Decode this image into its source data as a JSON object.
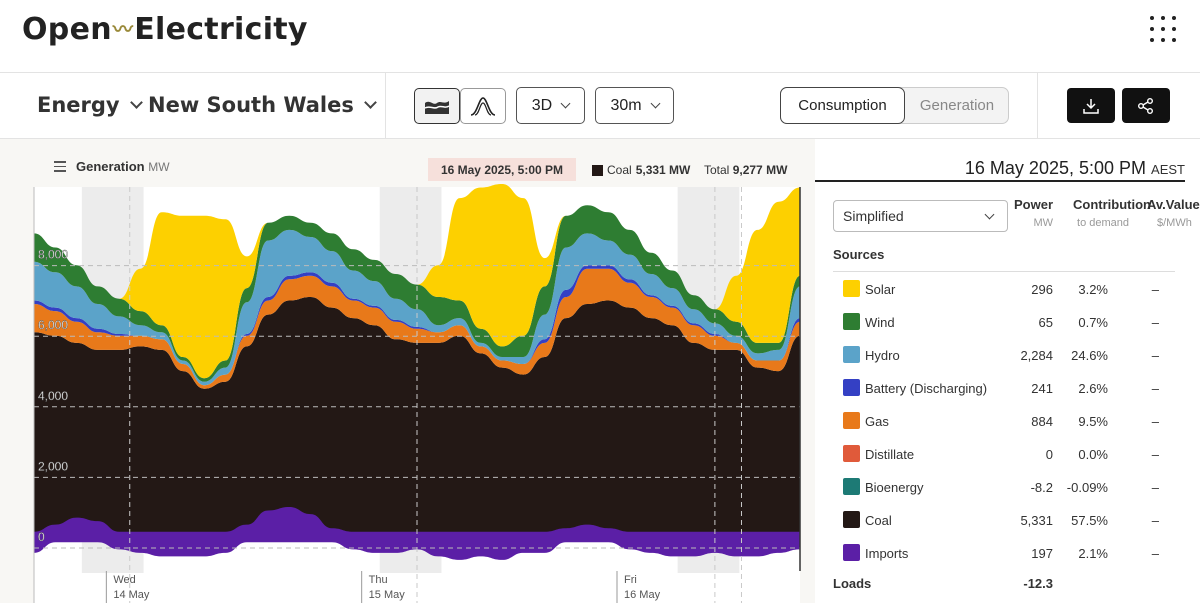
{
  "header": {
    "logo_left": "Open",
    "logo_right": "Electricity",
    "menu_icon": "grid-dots-icon"
  },
  "toolbar": {
    "metric": "Energy",
    "region": "New South Wales",
    "range": "3D",
    "interval": "30m",
    "mode_active": "Consumption",
    "mode_inactive": "Generation",
    "download_icon": "download-icon",
    "share_icon": "share-icon"
  },
  "chart": {
    "title": "Generation",
    "unit": "MW",
    "hover_date": "16 May 2025, 5:00 PM",
    "readout_label": "Coal",
    "readout_value": "5,331 MW",
    "total_label": "Total",
    "total_value": "9,277 MW"
  },
  "chart_data": {
    "type": "area",
    "stacked": true,
    "yticks": [
      "8,000",
      "6,000",
      "4,000",
      "2,000",
      "0"
    ],
    "ylim": [
      -1000,
      10000
    ],
    "x_ticks": [
      {
        "day": "Wed",
        "date": "14 May"
      },
      {
        "day": "Thu",
        "date": "15 May"
      },
      {
        "day": "Fri",
        "date": "16 May"
      }
    ],
    "x_hours": [
      0,
      2,
      4,
      6,
      8,
      10,
      12,
      14,
      16,
      18,
      20,
      22,
      24,
      26,
      28,
      30,
      32,
      34,
      36,
      38,
      40,
      42,
      44,
      46,
      48,
      50,
      52,
      54,
      56,
      58,
      60,
      62,
      64,
      66,
      68,
      70,
      72
    ],
    "series": [
      {
        "name": "Coal",
        "color": "#231815",
        "values": [
          5800,
          5700,
          5500,
          5300,
          5300,
          5400,
          5300,
          4700,
          4200,
          4400,
          5400,
          6300,
          6700,
          6800,
          6500,
          6200,
          6000,
          5600,
          5500,
          5500,
          5700,
          5200,
          4800,
          4600,
          5100,
          6200,
          6600,
          6700,
          6500,
          6200,
          6000,
          5500,
          5300,
          5300,
          4800,
          4700,
          5700
        ]
      },
      {
        "name": "Gas",
        "color": "#e8791a",
        "values": [
          800,
          700,
          600,
          500,
          400,
          300,
          300,
          200,
          100,
          200,
          300,
          400,
          600,
          600,
          600,
          500,
          500,
          500,
          400,
          300,
          300,
          200,
          200,
          300,
          400,
          600,
          1000,
          900,
          700,
          600,
          500,
          500,
          400,
          200,
          200,
          300,
          400
        ]
      },
      {
        "name": "Battery (Discharging)",
        "color": "#3440c4",
        "values": [
          100,
          100,
          100,
          100,
          50,
          0,
          0,
          0,
          0,
          0,
          50,
          100,
          100,
          100,
          100,
          50,
          50,
          50,
          50,
          0,
          0,
          0,
          0,
          0,
          100,
          200,
          100,
          100,
          100,
          50,
          50,
          50,
          50,
          0,
          0,
          0,
          100
        ]
      },
      {
        "name": "Hydro",
        "color": "#5ba3c9",
        "values": [
          1100,
          1000,
          900,
          700,
          500,
          300,
          200,
          100,
          100,
          200,
          900,
          1600,
          1300,
          1000,
          900,
          800,
          700,
          600,
          500,
          200,
          200,
          100,
          100,
          200,
          700,
          1200,
          900,
          700,
          700,
          600,
          500,
          400,
          300,
          200,
          200,
          300,
          900
        ]
      },
      {
        "name": "Wind",
        "color": "#2e7d32",
        "values": [
          800,
          700,
          600,
          500,
          500,
          400,
          200,
          100,
          100,
          200,
          400,
          500,
          400,
          400,
          500,
          600,
          600,
          700,
          700,
          800,
          500,
          400,
          300,
          600,
          800,
          900,
          800,
          800,
          700,
          600,
          500,
          400,
          400,
          400,
          300,
          200,
          300
        ]
      },
      {
        "name": "Solar",
        "color": "#fdd000",
        "values": [
          0,
          0,
          0,
          0,
          0,
          1200,
          3200,
          4000,
          4600,
          4000,
          900,
          0,
          0,
          0,
          0,
          0,
          0,
          0,
          0,
          900,
          2900,
          4000,
          4600,
          3900,
          800,
          0,
          0,
          0,
          0,
          0,
          0,
          0,
          0,
          1300,
          3200,
          4000,
          2500
        ]
      },
      {
        "name": "Imports",
        "color": "#5b1fa6",
        "values": [
          -300,
          200,
          400,
          300,
          -200,
          -300,
          -400,
          -400,
          -400,
          -300,
          200,
          600,
          700,
          500,
          100,
          -200,
          -300,
          -300,
          -200,
          -400,
          -500,
          -400,
          -500,
          -300,
          -300,
          100,
          200,
          100,
          -200,
          -300,
          -400,
          -400,
          -300,
          -400,
          -400,
          -300,
          -200
        ]
      }
    ]
  },
  "panel": {
    "datetime": "16 May 2025, 5:00 PM",
    "tz": "AEST",
    "view_select": "Simplified",
    "col_power": "Power",
    "col_power_unit": "MW",
    "col_contrib": "Contribution",
    "col_contrib_sub": "to demand",
    "col_av": "Av.Value",
    "col_av_unit": "$/MWh",
    "sources_label": "Sources",
    "sources": [
      {
        "label": "Solar",
        "color": "#fdd000",
        "power": "296",
        "contrib": "3.2%",
        "av": "–"
      },
      {
        "label": "Wind",
        "color": "#2e7d32",
        "power": "65",
        "contrib": "0.7%",
        "av": "–"
      },
      {
        "label": "Hydro",
        "color": "#5ba3c9",
        "power": "2,284",
        "contrib": "24.6%",
        "av": "–"
      },
      {
        "label": "Battery (Discharging)",
        "color": "#3440c4",
        "power": "241",
        "contrib": "2.6%",
        "av": "–"
      },
      {
        "label": "Gas",
        "color": "#e8791a",
        "power": "884",
        "contrib": "9.5%",
        "av": "–"
      },
      {
        "label": "Distillate",
        "color": "#e05a3a",
        "power": "0",
        "contrib": "0.0%",
        "av": "–"
      },
      {
        "label": "Bioenergy",
        "color": "#1d7a75",
        "power": "-8.2",
        "contrib": "-0.09%",
        "av": "–"
      },
      {
        "label": "Coal",
        "color": "#231815",
        "power": "5,331",
        "contrib": "57.5%",
        "av": "–"
      },
      {
        "label": "Imports",
        "color": "#5b1fa6",
        "power": "197",
        "contrib": "2.1%",
        "av": "–"
      }
    ],
    "loads_label": "Loads",
    "loads_power": "-12.3"
  }
}
